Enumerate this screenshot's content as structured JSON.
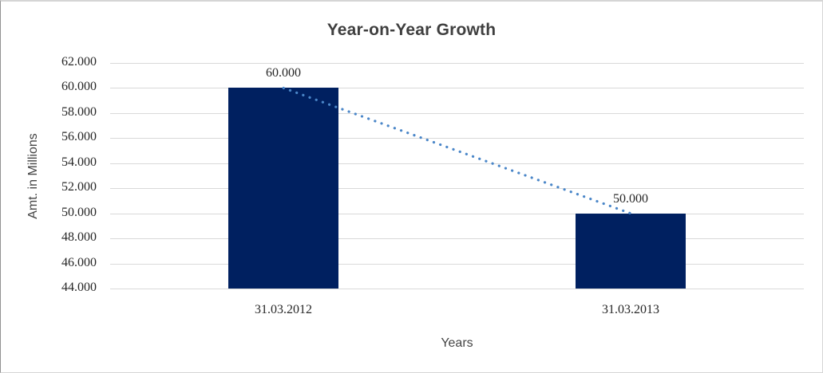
{
  "chart_data": {
    "type": "bar",
    "title": "Year-on-Year Growth",
    "xlabel": "Years",
    "ylabel": "Amt. in Millions",
    "categories": [
      "31.03.2012",
      "31.03.2013"
    ],
    "series": [
      {
        "name": "Amt. in Millions",
        "values": [
          60000,
          50000
        ]
      }
    ],
    "data_labels": [
      "60.000",
      "50.000"
    ],
    "ylim": [
      44000,
      62000
    ],
    "ytick_step": 2000,
    "ytick_values": [
      62000,
      60000,
      58000,
      56000,
      54000,
      52000,
      50000,
      48000,
      46000,
      44000
    ],
    "ytick_labels": [
      "62.000",
      "60.000",
      "58.000",
      "56.000",
      "54.000",
      "52.000",
      "50.000",
      "48.000",
      "46.000",
      "44.000"
    ],
    "grid": true,
    "legend": "none",
    "trendline": {
      "style": "dotted",
      "description": "dotted line connecting bar tops from 60.000 down to 50.000"
    },
    "colors": {
      "bar_fill": "#002060",
      "trendline": "#4a86c8",
      "gridline": "#d9d9d9",
      "tick_text": "#262626",
      "title_text": "#3f3f3f",
      "axis_title_text": "#444444",
      "frame_border": "#d5d5d5",
      "background": "#ffffff"
    }
  }
}
